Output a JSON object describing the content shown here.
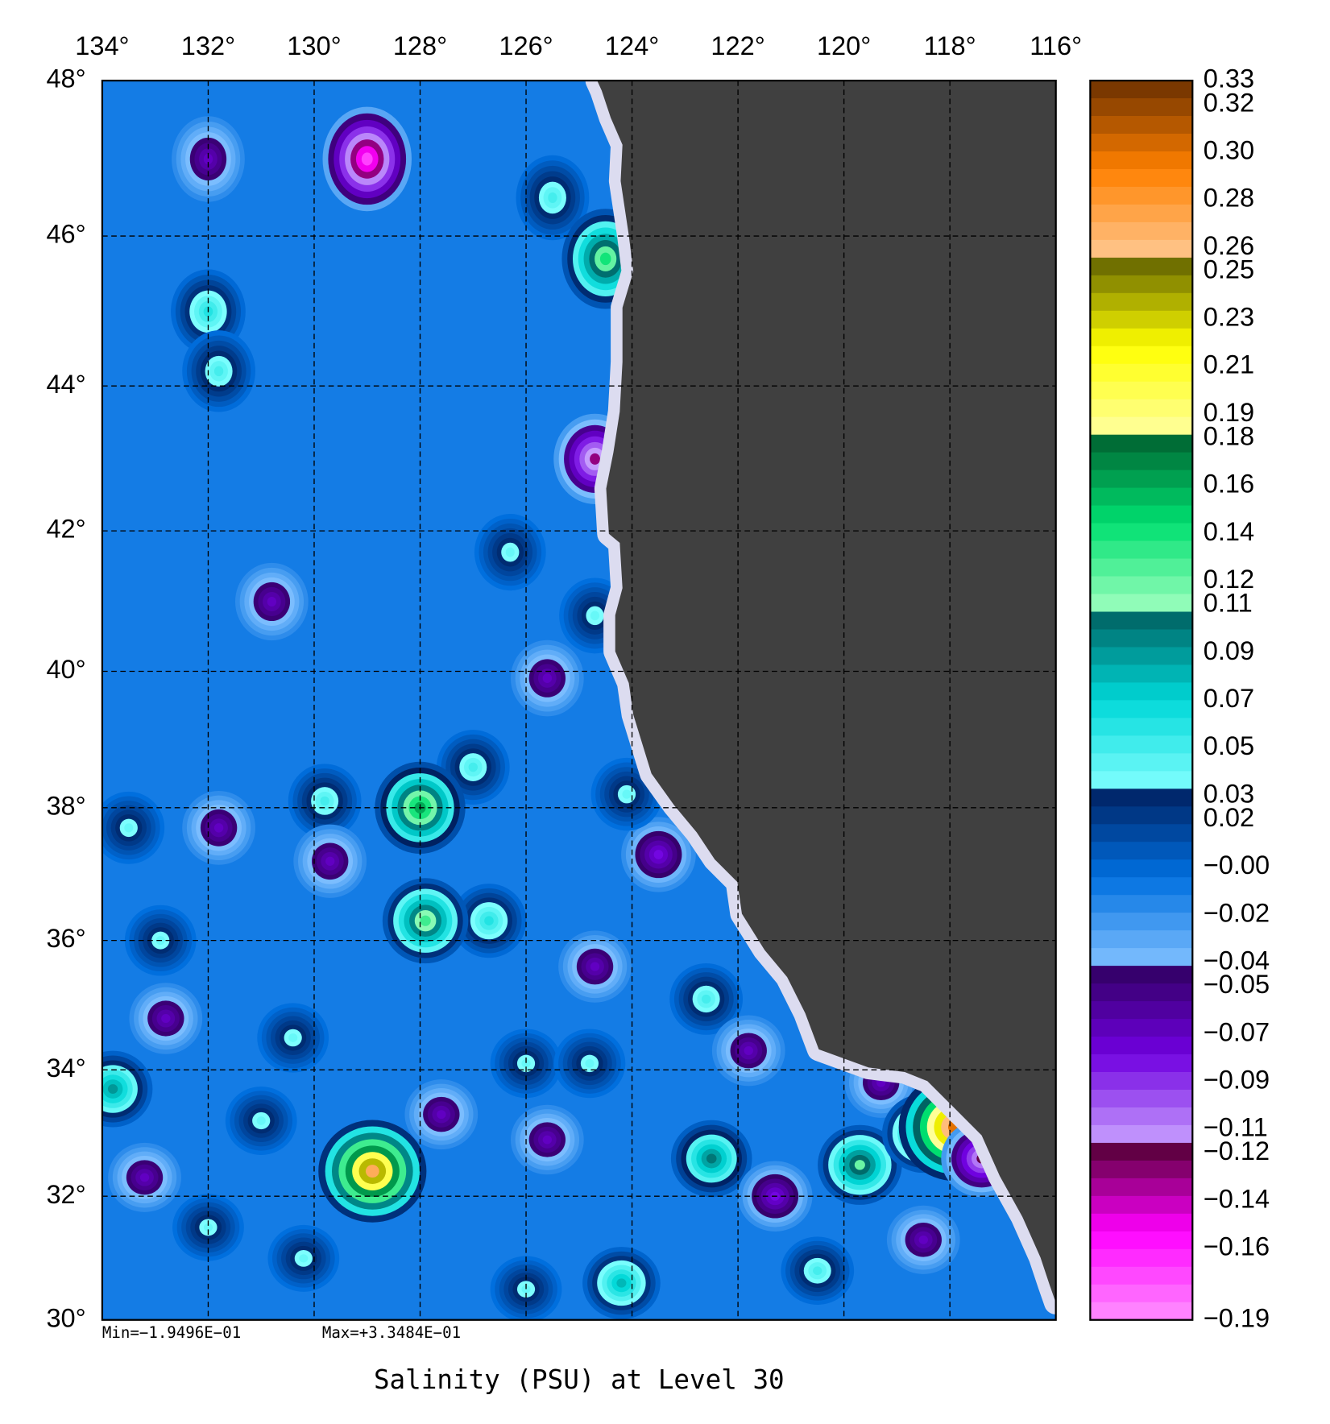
{
  "chart_data": {
    "type": "contour-map",
    "title": "Salinity (PSU) at Level 30",
    "min_label": "Min=−1.9496E−01",
    "max_label": "Max=+3.3484E−01",
    "projection": "mercator",
    "grid": true,
    "land_color": "#404040",
    "nodata_color": "#dcdcf0",
    "xlim": [
      -134,
      -116
    ],
    "ylim": [
      30,
      48
    ],
    "xticks": [
      {
        "value": -134,
        "label": "134°"
      },
      {
        "value": -132,
        "label": "132°"
      },
      {
        "value": -130,
        "label": "130°"
      },
      {
        "value": -128,
        "label": "128°"
      },
      {
        "value": -126,
        "label": "126°"
      },
      {
        "value": -124,
        "label": "124°"
      },
      {
        "value": -122,
        "label": "122°"
      },
      {
        "value": -120,
        "label": "120°"
      },
      {
        "value": -118,
        "label": "118°"
      },
      {
        "value": -116,
        "label": "116°"
      }
    ],
    "yticks": [
      {
        "value": 30,
        "label": "30°"
      },
      {
        "value": 32,
        "label": "32°"
      },
      {
        "value": 34,
        "label": "34°"
      },
      {
        "value": 36,
        "label": "36°"
      },
      {
        "value": 38,
        "label": "38°"
      },
      {
        "value": 40,
        "label": "40°"
      },
      {
        "value": 42,
        "label": "42°"
      },
      {
        "value": 44,
        "label": "44°"
      },
      {
        "value": 46,
        "label": "46°"
      },
      {
        "value": 48,
        "label": "48°"
      }
    ],
    "clim": [
      -0.19,
      0.33
    ],
    "colormap": [
      [
        "#6b3000",
        "#ff8000",
        "#ffc890"
      ],
      [
        "#606000",
        "#ffff00",
        "#ffffa0"
      ],
      [
        "#006030",
        "#00e070",
        "#a0ffc0"
      ],
      [
        "#006060",
        "#00d8d8",
        "#80ffff"
      ],
      [
        "#002060",
        "#0070e0",
        "#80c0ff"
      ],
      [
        "#300060",
        "#7000e0",
        "#c8a0ff"
      ],
      [
        "#500030",
        "#ff00ff",
        "#ff90ff"
      ]
    ],
    "cticks": [
      0.33,
      0.32,
      {
        "value": 0.3,
        "label": "0.30"
      },
      0.28,
      0.26,
      0.25,
      0.23,
      0.21,
      0.19,
      0.18,
      0.16,
      0.14,
      0.12,
      0.11,
      0.09,
      0.07,
      0.05,
      0.03,
      0.02,
      {
        "value": 0,
        "label": "−0.00"
      },
      {
        "value": -0.02,
        "label": "−0.02"
      },
      {
        "value": -0.04,
        "label": "−0.04"
      },
      {
        "value": -0.05,
        "label": "−0.05"
      },
      {
        "value": -0.07,
        "label": "−0.07"
      },
      {
        "value": -0.09,
        "label": "−0.09"
      },
      {
        "value": -0.11,
        "label": "−0.11"
      },
      {
        "value": -0.12,
        "label": "−0.12"
      },
      {
        "value": -0.14,
        "label": "−0.14"
      },
      {
        "value": -0.16,
        "label": "−0.16"
      },
      {
        "value": -0.19,
        "label": "−0.19"
      }
    ],
    "background": -0.01,
    "anomalies": [
      {
        "lon": -132,
        "lat": 47,
        "value": -0.07
      },
      {
        "lon": -129,
        "lat": 47,
        "value": -0.17
      },
      {
        "lon": -125.5,
        "lat": 46.5,
        "value": 0.05
      },
      {
        "lon": -124.5,
        "lat": 45.7,
        "value": 0.14
      },
      {
        "lon": -132,
        "lat": 45,
        "value": 0.06
      },
      {
        "lon": -131.8,
        "lat": 44.2,
        "value": 0.05
      },
      {
        "lon": -124.7,
        "lat": 43,
        "value": -0.13
      },
      {
        "lon": -126.3,
        "lat": 41.7,
        "value": 0.04
      },
      {
        "lon": -130.8,
        "lat": 41,
        "value": -0.07
      },
      {
        "lon": -124.7,
        "lat": 40.8,
        "value": 0.04
      },
      {
        "lon": -125.6,
        "lat": 39.9,
        "value": -0.07
      },
      {
        "lon": -127,
        "lat": 38.6,
        "value": 0.05
      },
      {
        "lon": -128,
        "lat": 38,
        "value": 0.16
      },
      {
        "lon": -129.8,
        "lat": 38.1,
        "value": 0.05
      },
      {
        "lon": -133.5,
        "lat": 37.7,
        "value": 0.04
      },
      {
        "lon": -131.8,
        "lat": 37.7,
        "value": -0.07
      },
      {
        "lon": -129.7,
        "lat": 37.2,
        "value": -0.07
      },
      {
        "lon": -123.5,
        "lat": 37.3,
        "value": -0.08
      },
      {
        "lon": -124.1,
        "lat": 38.2,
        "value": 0.04
      },
      {
        "lon": -126.7,
        "lat": 36.3,
        "value": 0.06
      },
      {
        "lon": -127.9,
        "lat": 36.3,
        "value": 0.13
      },
      {
        "lon": -132.9,
        "lat": 36,
        "value": 0.04
      },
      {
        "lon": -124.7,
        "lat": 35.6,
        "value": -0.07
      },
      {
        "lon": -122.6,
        "lat": 35.1,
        "value": 0.05
      },
      {
        "lon": -132.8,
        "lat": 34.8,
        "value": -0.07
      },
      {
        "lon": -130.4,
        "lat": 34.5,
        "value": 0.04
      },
      {
        "lon": -126,
        "lat": 34.1,
        "value": 0.04
      },
      {
        "lon": -124.8,
        "lat": 34.1,
        "value": 0.04
      },
      {
        "lon": -121.8,
        "lat": 34.3,
        "value": -0.07
      },
      {
        "lon": -133.8,
        "lat": 33.7,
        "value": 0.09
      },
      {
        "lon": -127.6,
        "lat": 33.3,
        "value": -0.07
      },
      {
        "lon": -125.6,
        "lat": 32.9,
        "value": -0.07
      },
      {
        "lon": -131,
        "lat": 33.2,
        "value": 0.04
      },
      {
        "lon": -128.9,
        "lat": 32.4,
        "value": 0.27
      },
      {
        "lon": -133.2,
        "lat": 32.3,
        "value": -0.07
      },
      {
        "lon": -132,
        "lat": 31.5,
        "value": 0.04
      },
      {
        "lon": -122.5,
        "lat": 32.6,
        "value": 0.1
      },
      {
        "lon": -121.3,
        "lat": 32,
        "value": -0.08
      },
      {
        "lon": -119.7,
        "lat": 32.5,
        "value": 0.12
      },
      {
        "lon": -119.3,
        "lat": 33.8,
        "value": -0.07
      },
      {
        "lon": -118.5,
        "lat": 33,
        "value": 0.11
      },
      {
        "lon": -117.9,
        "lat": 33.1,
        "value": 0.3
      },
      {
        "lon": -117.4,
        "lat": 32.6,
        "value": -0.12
      },
      {
        "lon": -118.5,
        "lat": 31.3,
        "value": -0.07
      },
      {
        "lon": -124.2,
        "lat": 30.6,
        "value": 0.08
      },
      {
        "lon": -126,
        "lat": 30.5,
        "value": 0.04
      },
      {
        "lon": -120.5,
        "lat": 30.8,
        "value": 0.05
      },
      {
        "lon": -130.2,
        "lat": 31,
        "value": 0.04
      }
    ]
  }
}
